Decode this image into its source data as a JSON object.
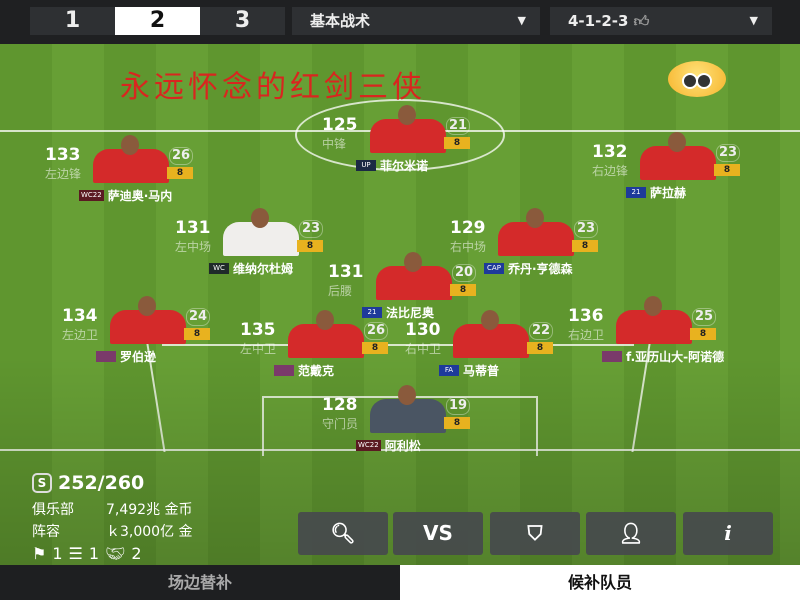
{
  "topbar": {
    "squads": [
      "1",
      "2",
      "3"
    ],
    "active_squad": "2",
    "tactic": "基本战术",
    "formation": "4-1-2-3"
  },
  "banner": "永远怀念的红剑三侠",
  "players": [
    {
      "role": "st",
      "ovr": "125",
      "position": "中锋",
      "level": "21",
      "rank": "8",
      "badge": "UP",
      "badge_color": "#1b2a44",
      "name": "菲尔米诺",
      "kit": "red"
    },
    {
      "role": "lw",
      "ovr": "133",
      "position": "左边锋",
      "level": "26",
      "rank": "8",
      "badge": "WC22",
      "badge_color": "#5a1a22",
      "name": "萨迪奥·马内",
      "kit": "red"
    },
    {
      "role": "rw",
      "ovr": "132",
      "position": "右边锋",
      "level": "23",
      "rank": "8",
      "badge": "21",
      "badge_color": "#1e3a9a",
      "name": "萨拉赫",
      "kit": "red"
    },
    {
      "role": "lm",
      "ovr": "131",
      "position": "左中场",
      "level": "23",
      "rank": "8",
      "badge": "WC",
      "badge_color": "#1f2a2a",
      "name": "维纳尔杜姆",
      "kit": "white"
    },
    {
      "role": "rm",
      "ovr": "129",
      "position": "右中场",
      "level": "23",
      "rank": "8",
      "badge": "CAP",
      "badge_color": "#1e3a9a",
      "name": "乔丹·亨德森",
      "kit": "red"
    },
    {
      "role": "cdm",
      "ovr": "131",
      "position": "后腰",
      "level": "20",
      "rank": "8",
      "badge": "21",
      "badge_color": "#1e3a9a",
      "name": "法比尼奥",
      "kit": "red"
    },
    {
      "role": "lb",
      "ovr": "134",
      "position": "左边卫",
      "level": "24",
      "rank": "8",
      "badge": "",
      "badge_color": "#7a3a6a",
      "name": "罗伯逊",
      "kit": "red"
    },
    {
      "role": "lcb",
      "ovr": "135",
      "position": "左中卫",
      "level": "26",
      "rank": "8",
      "badge": "",
      "badge_color": "#7a3a6a",
      "name": "范戴克",
      "kit": "red"
    },
    {
      "role": "rcb",
      "ovr": "130",
      "position": "右中卫",
      "level": "22",
      "rank": "8",
      "badge": "FA",
      "badge_color": "#1e3a9a",
      "name": "马蒂普",
      "kit": "red"
    },
    {
      "role": "rb",
      "ovr": "136",
      "position": "右边卫",
      "level": "25",
      "rank": "8",
      "badge": "",
      "badge_color": "#7a3a6a",
      "name": "f.亚历山大-阿诺德",
      "kit": "red"
    },
    {
      "role": "gk",
      "ovr": "128",
      "position": "守门员",
      "level": "19",
      "rank": "8",
      "badge": "WC22",
      "badge_color": "#5a1a22",
      "name": "阿利松",
      "kit": "gk"
    }
  ],
  "stats": {
    "salary_icon": "S",
    "salary": "252/260",
    "club_label": "俱乐部",
    "club_value": "7,492兆 金币",
    "squad_label": "阵容",
    "squad_value": "ｋ3,000亿 金",
    "count1": "1",
    "count2": "1",
    "count3": "2"
  },
  "buttons": [
    {
      "icon": "search-icon"
    },
    {
      "icon": "vs-search-icon",
      "label": "VS"
    },
    {
      "icon": "shield-icon"
    },
    {
      "icon": "manager-icon"
    },
    {
      "icon": "info-icon",
      "label": "i"
    }
  ],
  "tabs": {
    "bench": "场边替补",
    "reserves": "候补队员",
    "active": "reserves"
  }
}
